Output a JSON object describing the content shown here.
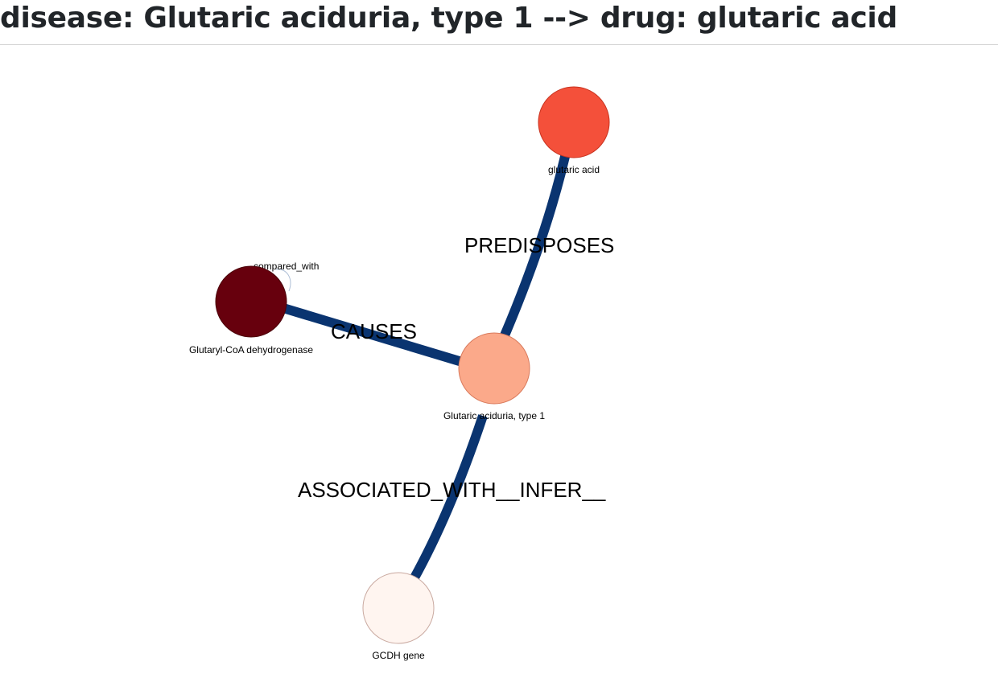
{
  "header": {
    "title": "disease: Glutaric aciduria, type 1 --> drug: glutaric acid"
  },
  "graph": {
    "nodes": [
      {
        "id": "glutaric_acid",
        "label": "glutaric acid",
        "fill": "#f4503a",
        "stroke": "#c8331f"
      },
      {
        "id": "gcd_enzyme",
        "label": "Glutaryl-CoA dehydrogenase",
        "fill": "#67000d",
        "stroke": "#4a0009"
      },
      {
        "id": "disease",
        "label": "Glutaric aciduria, type 1",
        "fill": "#fba98a",
        "stroke": "#d97a5c"
      },
      {
        "id": "gcdh_gene",
        "label": "GCDH gene",
        "fill": "#fff5f0",
        "stroke": "#c9a9a0"
      }
    ],
    "edges": [
      {
        "id": "predisposes",
        "source": "disease",
        "target": "glutaric_acid",
        "label": "PREDISPOSES",
        "color": "#0a3470"
      },
      {
        "id": "causes",
        "source": "gcd_enzyme",
        "target": "disease",
        "label": "CAUSES",
        "color": "#0a3470"
      },
      {
        "id": "associated",
        "source": "disease",
        "target": "gcdh_gene",
        "label": "ASSOCIATED_WITH__INFER__",
        "color": "#0a3470"
      },
      {
        "id": "compared_with",
        "source": "gcd_enzyme",
        "target": "gcd_enzyme",
        "label": "compared_with",
        "color": "#aebfd6"
      }
    ]
  }
}
